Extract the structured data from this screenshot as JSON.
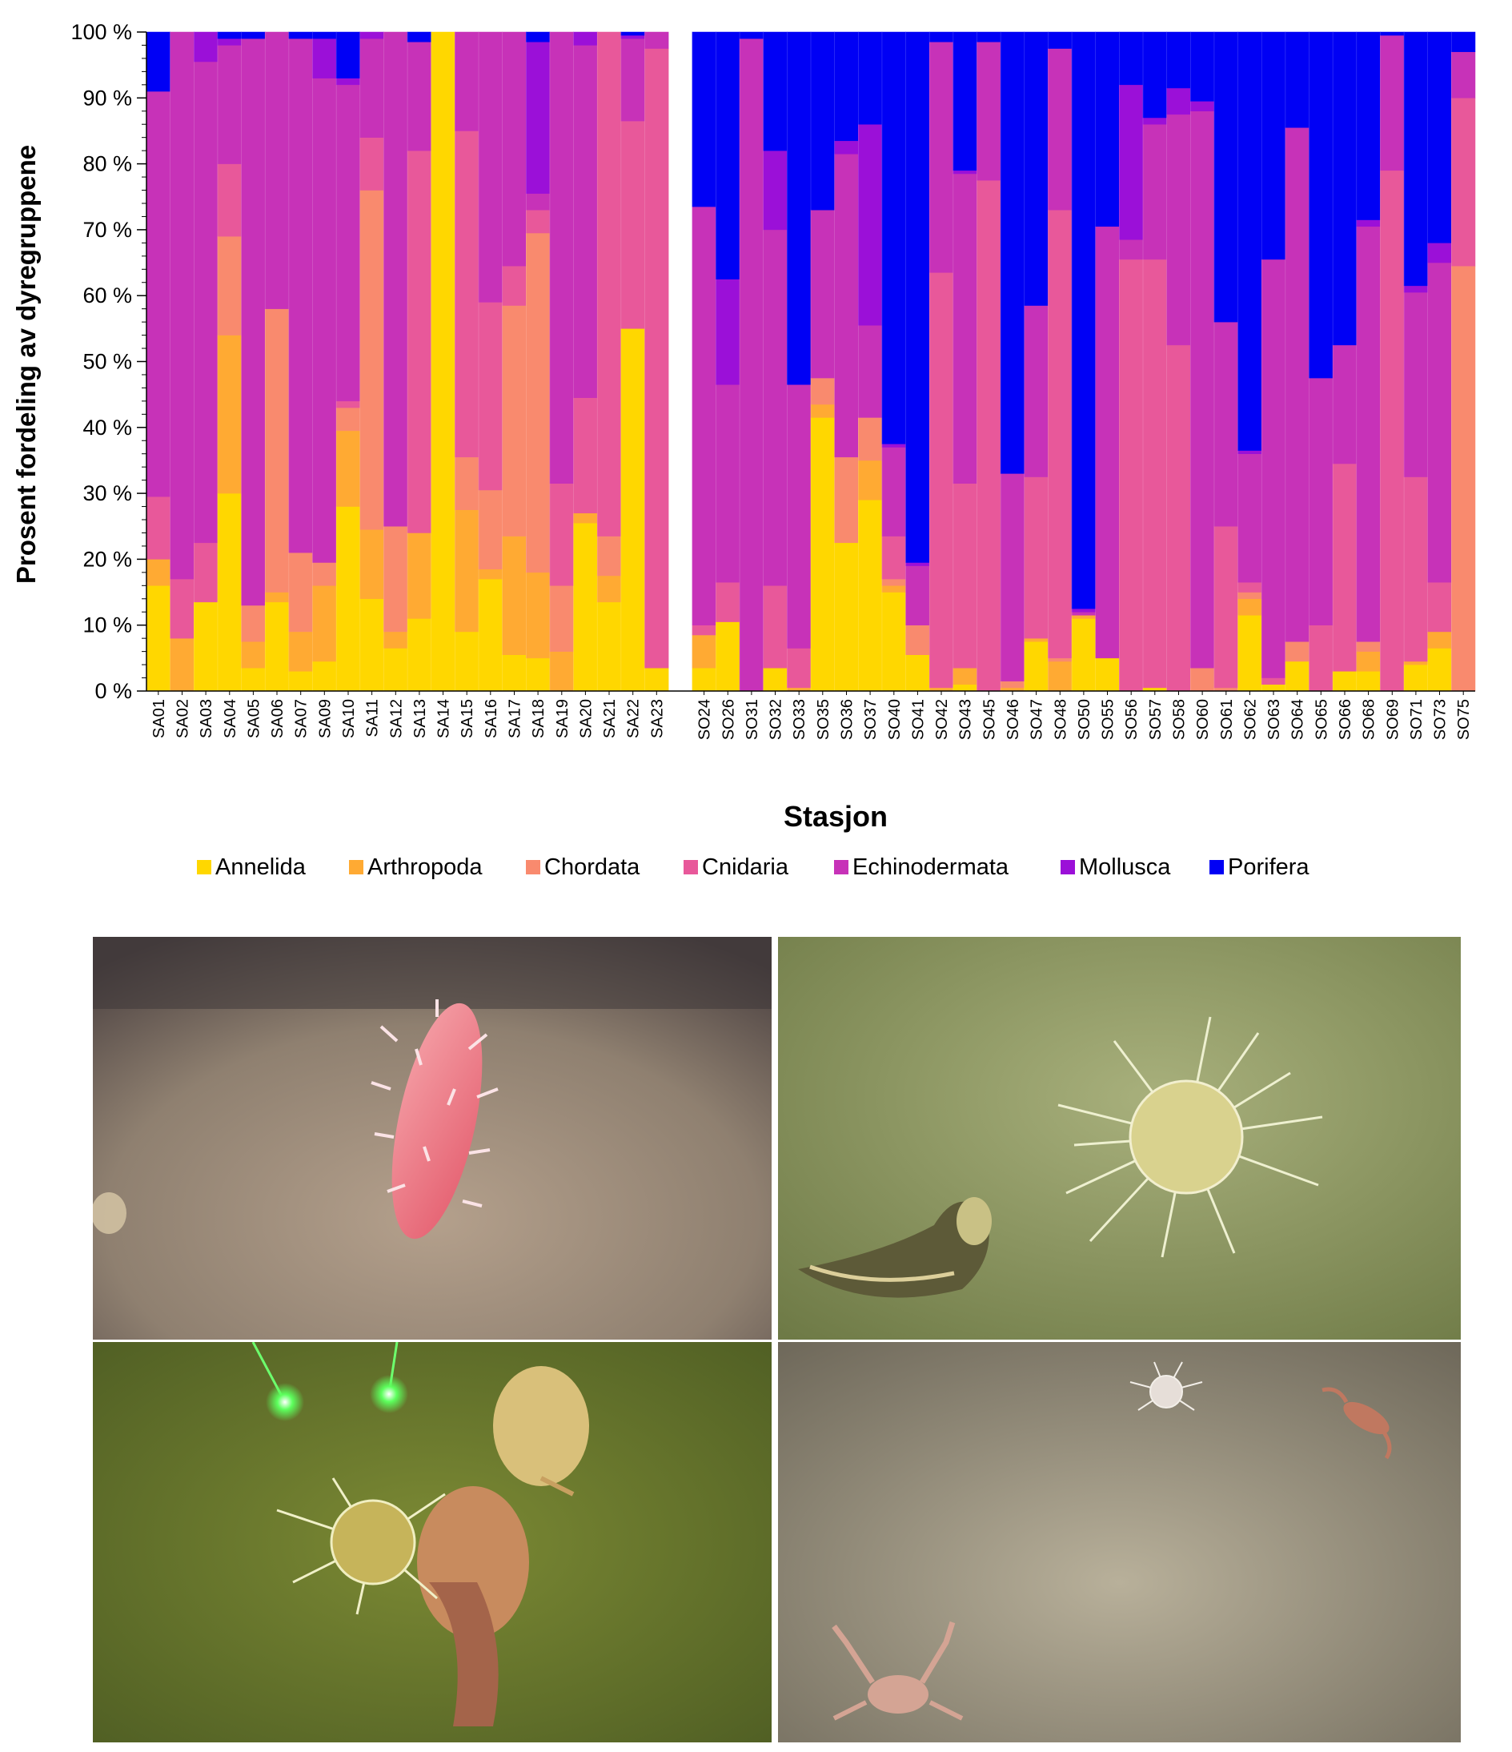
{
  "chart_data": {
    "type": "bar",
    "stacked": true,
    "percent": true,
    "xlabel": "Stasjon",
    "ylabel": "Prosent fordeling av dyregruppene",
    "ylim": [
      0,
      100
    ],
    "yticks": [
      "0 %",
      "10 %",
      "20 %",
      "30 %",
      "40 %",
      "50 %",
      "60 %",
      "70 %",
      "80 %",
      "90 %",
      "100 %"
    ],
    "legend_position": "bottom",
    "grid": false,
    "series_names": [
      "Annelida",
      "Arthropoda",
      "Chordata",
      "Cnidaria",
      "Echinodermata",
      "Mollusca",
      "Porifera"
    ],
    "colors": [
      "#FFD700",
      "#FFAA33",
      "#F98A6E",
      "#E8589A",
      "#C732B8",
      "#9B10D8",
      "#0000F5"
    ],
    "groups": [
      {
        "stations": [
          "SA01",
          "SA02",
          "SA03",
          "SA04",
          "SA05",
          "SA06",
          "SA07",
          "SA09",
          "SA10",
          "SA11",
          "SA12",
          "SA13",
          "SA14",
          "SA15",
          "SA16",
          "SA17",
          "SA18",
          "SA19",
          "SA20",
          "SA21",
          "SA22",
          "SA23"
        ],
        "values": [
          [
            16,
            4,
            0,
            9.5,
            61.5,
            0,
            9
          ],
          [
            0,
            8,
            0,
            9,
            83,
            0,
            0
          ],
          [
            13.5,
            0,
            0,
            9,
            73,
            4.5,
            0
          ],
          [
            30,
            24,
            15,
            11,
            18,
            1,
            1
          ],
          [
            3.5,
            4,
            5.5,
            0,
            86,
            0,
            1
          ],
          [
            13.5,
            1.5,
            43,
            0,
            42,
            0,
            0
          ],
          [
            3,
            6,
            12,
            0,
            78,
            0,
            1
          ],
          [
            4.5,
            11.5,
            3.5,
            0,
            73.5,
            6,
            1
          ],
          [
            28,
            11.5,
            3.5,
            1,
            48,
            1,
            7
          ],
          [
            14,
            10.5,
            51.5,
            8,
            15,
            1,
            0
          ],
          [
            6.5,
            2.5,
            16,
            0,
            75,
            0,
            0
          ],
          [
            11,
            13,
            0,
            58,
            16.5,
            0,
            1.5
          ],
          [
            100,
            0,
            0,
            0,
            0,
            0,
            0
          ],
          [
            9,
            18.5,
            8,
            49.5,
            15,
            0,
            0
          ],
          [
            17,
            1.5,
            12,
            28.5,
            41,
            0,
            0
          ],
          [
            5.5,
            18,
            35,
            6,
            35.5,
            0,
            0
          ],
          [
            5,
            13,
            51.5,
            3.5,
            2.5,
            23,
            1.5
          ],
          [
            0,
            6,
            10,
            15.5,
            68.5,
            0,
            0
          ],
          [
            25.5,
            1.5,
            0,
            17.5,
            53.5,
            2,
            0
          ],
          [
            13.5,
            4,
            6,
            76.5,
            0,
            0,
            0
          ],
          [
            55,
            0,
            0,
            31.5,
            12.5,
            0.5,
            0.5
          ],
          [
            3.5,
            0,
            0,
            94,
            2.5,
            0,
            0
          ]
        ]
      },
      {
        "stations": [
          "SO24",
          "SO26",
          "SO31",
          "SO32",
          "SO33",
          "SO35",
          "SO36",
          "SO37",
          "SO40",
          "SO41",
          "SO42",
          "SO43",
          "SO45",
          "SO46",
          "SO47",
          "SO48",
          "SO50",
          "SO55",
          "SO56",
          "SO57",
          "SO58",
          "SO60",
          "SO61",
          "SO62",
          "SO63",
          "SO64",
          "SO65",
          "SO66",
          "SO68",
          "SO69",
          "SO71",
          "SO73",
          "SO75"
        ],
        "values": [
          [
            3.5,
            5,
            0,
            1.5,
            63.5,
            0,
            26.5
          ],
          [
            10.5,
            0,
            0,
            6,
            30,
            16,
            37.5
          ],
          [
            0,
            0,
            0,
            0,
            99,
            0,
            1
          ],
          [
            3.5,
            0,
            0,
            12.5,
            54,
            12,
            18
          ],
          [
            0,
            0.5,
            0,
            6,
            40,
            0,
            53.5
          ],
          [
            41.5,
            2,
            4,
            0,
            25.5,
            0,
            27
          ],
          [
            22.5,
            0,
            13,
            0,
            46,
            2,
            16.5
          ],
          [
            29,
            6,
            6.5,
            0,
            14,
            30.5,
            14
          ],
          [
            15,
            1,
            1,
            6.5,
            13.5,
            0.5,
            62.5
          ],
          [
            5.5,
            0,
            4.5,
            0,
            9,
            0.5,
            80.5
          ],
          [
            0,
            0.5,
            0,
            63,
            35,
            0,
            1.5
          ],
          [
            1,
            2.5,
            0,
            28,
            47,
            0.5,
            21
          ],
          [
            0,
            0,
            0,
            77.5,
            21,
            0,
            1.5
          ],
          [
            0,
            0.5,
            1,
            0,
            31.5,
            0,
            67
          ],
          [
            7.5,
            0.5,
            0,
            24.5,
            26,
            0,
            41.5
          ],
          [
            0,
            4.5,
            0.5,
            68,
            24.5,
            0,
            2.5
          ],
          [
            11,
            0.5,
            0,
            0,
            0.5,
            0.5,
            87.5
          ],
          [
            5,
            0,
            0,
            0,
            65.5,
            0,
            29.5
          ],
          [
            0,
            0,
            0,
            65.5,
            3,
            23.5,
            8
          ],
          [
            0.5,
            0,
            0,
            65,
            20.5,
            1,
            13
          ],
          [
            0,
            0,
            0,
            52.5,
            35,
            4,
            8.5
          ],
          [
            0,
            0,
            3.5,
            0,
            84.5,
            1.5,
            10.5
          ],
          [
            0,
            0,
            0.5,
            24.5,
            31,
            0,
            44
          ],
          [
            11.5,
            2.5,
            1,
            1.5,
            19.5,
            0.5,
            63.5
          ],
          [
            1,
            0,
            0,
            1,
            63.5,
            0,
            34.5
          ],
          [
            4.5,
            0,
            3,
            0,
            78,
            0,
            14.5
          ],
          [
            0,
            0,
            0,
            10,
            37.5,
            0,
            52.5
          ],
          [
            3,
            0,
            0,
            31.5,
            18,
            0,
            47.5
          ],
          [
            3,
            3,
            1.5,
            0,
            63,
            1,
            28.5
          ],
          [
            0,
            0,
            0,
            79,
            20.5,
            0,
            0.5
          ],
          [
            4,
            0.5,
            0,
            28,
            28,
            1,
            38.5
          ],
          [
            6.5,
            2.5,
            0,
            7.5,
            48.5,
            3,
            32
          ],
          [
            0,
            0,
            64.5,
            25.5,
            7,
            0,
            3
          ]
        ]
      }
    ]
  },
  "photos": [
    {
      "subject": "sea cucumber on seabed",
      "icon": "sea-cucumber-icon"
    },
    {
      "subject": "sea urchin and bivalve on seabed",
      "icon": "sea-urchin-icon"
    },
    {
      "subject": "sea urchin and sea pens with green laser dots",
      "icon": "sea-pen-icon"
    },
    {
      "subject": "crab, small urchin and shrimp on seabed",
      "icon": "crab-icon"
    }
  ]
}
